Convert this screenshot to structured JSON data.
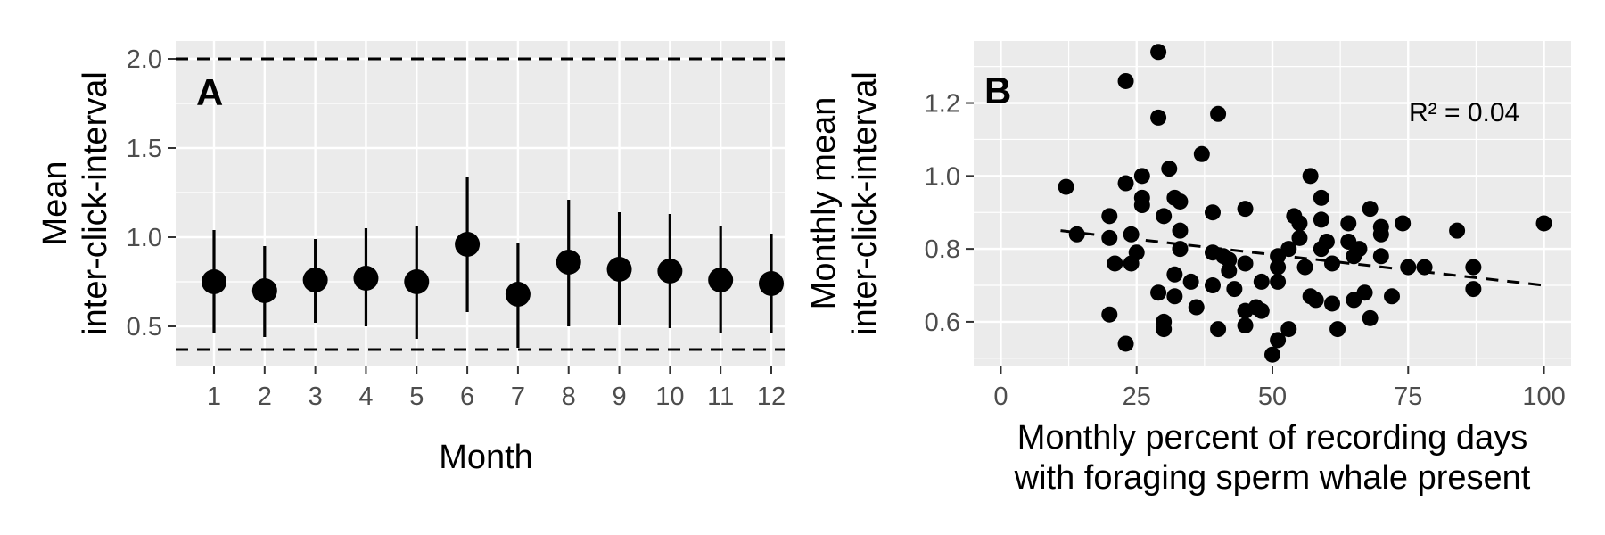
{
  "chart_data": [
    {
      "type": "scatter",
      "panel_label": "A",
      "xlabel": "Month",
      "ylabel_lines": [
        "Mean",
        "inter-click-interval"
      ],
      "x_categories": [
        "1",
        "2",
        "3",
        "4",
        "5",
        "6",
        "7",
        "8",
        "9",
        "10",
        "11",
        "12"
      ],
      "yticks": [
        0.5,
        1.0,
        1.5,
        2.0
      ],
      "ytick_labels": [
        "0.5",
        "1.0",
        "1.5",
        "2.0"
      ],
      "ylim": [
        0.28,
        2.1
      ],
      "points": [
        {
          "x": "1",
          "mean": 0.75,
          "low": 0.46,
          "high": 1.04
        },
        {
          "x": "2",
          "mean": 0.7,
          "low": 0.44,
          "high": 0.95
        },
        {
          "x": "3",
          "mean": 0.76,
          "low": 0.52,
          "high": 0.99
        },
        {
          "x": "4",
          "mean": 0.77,
          "low": 0.5,
          "high": 1.05
        },
        {
          "x": "5",
          "mean": 0.75,
          "low": 0.43,
          "high": 1.06
        },
        {
          "x": "6",
          "mean": 0.96,
          "low": 0.58,
          "high": 1.34
        },
        {
          "x": "7",
          "mean": 0.68,
          "low": 0.38,
          "high": 0.97
        },
        {
          "x": "8",
          "mean": 0.86,
          "low": 0.5,
          "high": 1.21
        },
        {
          "x": "9",
          "mean": 0.82,
          "low": 0.51,
          "high": 1.14
        },
        {
          "x": "10",
          "mean": 0.81,
          "low": 0.49,
          "high": 1.13
        },
        {
          "x": "11",
          "mean": 0.76,
          "low": 0.46,
          "high": 1.06
        },
        {
          "x": "12",
          "mean": 0.74,
          "low": 0.46,
          "high": 1.02
        }
      ],
      "reference_lines": [
        2.0,
        0.37
      ],
      "grid": true
    },
    {
      "type": "scatter",
      "panel_label": "B",
      "xlabel_lines": [
        "Monthly percent of recording days",
        "with foraging sperm whale present"
      ],
      "ylabel_lines": [
        "Monthly mean",
        "inter-click-interval"
      ],
      "xticks": [
        0,
        25,
        50,
        75,
        100
      ],
      "xtick_labels": [
        "0",
        "25",
        "50",
        "75",
        "100"
      ],
      "xlim": [
        -5,
        105
      ],
      "yticks": [
        0.6,
        0.8,
        1.0,
        1.2
      ],
      "ytick_labels": [
        "0.6",
        "0.8",
        "1.0",
        "1.2"
      ],
      "ylim": [
        0.48,
        1.37
      ],
      "annotation": "R² = 0.04",
      "trend_line": {
        "x": [
          11,
          100
        ],
        "y": [
          0.85,
          0.7
        ]
      },
      "grid": true,
      "points": [
        [
          12,
          0.97
        ],
        [
          14,
          0.84
        ],
        [
          20,
          0.83
        ],
        [
          20,
          0.89
        ],
        [
          21,
          0.76
        ],
        [
          20,
          0.62
        ],
        [
          23,
          0.54
        ],
        [
          23,
          0.98
        ],
        [
          24,
          0.84
        ],
        [
          24,
          0.76
        ],
        [
          23,
          1.26
        ],
        [
          25,
          0.79
        ],
        [
          26,
          0.94
        ],
        [
          26,
          0.92
        ],
        [
          26,
          1.0
        ],
        [
          29,
          1.34
        ],
        [
          29,
          1.16
        ],
        [
          29,
          0.68
        ],
        [
          30,
          0.6
        ],
        [
          30,
          0.58
        ],
        [
          30,
          0.89
        ],
        [
          31,
          1.02
        ],
        [
          32,
          0.94
        ],
        [
          33,
          0.93
        ],
        [
          33,
          0.85
        ],
        [
          33,
          0.8
        ],
        [
          32,
          0.73
        ],
        [
          32,
          0.67
        ],
        [
          35,
          0.71
        ],
        [
          36,
          0.64
        ],
        [
          37,
          1.06
        ],
        [
          39,
          0.9
        ],
        [
          39,
          0.79
        ],
        [
          39,
          0.7
        ],
        [
          40,
          0.58
        ],
        [
          40,
          1.17
        ],
        [
          41,
          0.78
        ],
        [
          42,
          0.77
        ],
        [
          42,
          0.74
        ],
        [
          43,
          0.69
        ],
        [
          45,
          0.91
        ],
        [
          45,
          0.76
        ],
        [
          45,
          0.63
        ],
        [
          45,
          0.59
        ],
        [
          47,
          0.64
        ],
        [
          48,
          0.71
        ],
        [
          48,
          0.63
        ],
        [
          50,
          0.51
        ],
        [
          51,
          0.55
        ],
        [
          51,
          0.71
        ],
        [
          51,
          0.75
        ],
        [
          51,
          0.78
        ],
        [
          53,
          0.8
        ],
        [
          53,
          0.58
        ],
        [
          54,
          0.89
        ],
        [
          55,
          0.87
        ],
        [
          55,
          0.83
        ],
        [
          56,
          0.75
        ],
        [
          57,
          1.0
        ],
        [
          57,
          0.67
        ],
        [
          58,
          0.66
        ],
        [
          59,
          0.94
        ],
        [
          59,
          0.88
        ],
        [
          59,
          0.8
        ],
        [
          60,
          0.82
        ],
        [
          61,
          0.65
        ],
        [
          61,
          0.76
        ],
        [
          62,
          0.58
        ],
        [
          64,
          0.87
        ],
        [
          64,
          0.82
        ],
        [
          65,
          0.78
        ],
        [
          65,
          0.66
        ],
        [
          66,
          0.8
        ],
        [
          67,
          0.68
        ],
        [
          68,
          0.91
        ],
        [
          68,
          0.61
        ],
        [
          70,
          0.86
        ],
        [
          70,
          0.84
        ],
        [
          70,
          0.78
        ],
        [
          72,
          0.67
        ],
        [
          74,
          0.87
        ],
        [
          75,
          0.75
        ],
        [
          78,
          0.75
        ],
        [
          84,
          0.85
        ],
        [
          87,
          0.75
        ],
        [
          87,
          0.69
        ],
        [
          100,
          0.87
        ]
      ]
    }
  ]
}
